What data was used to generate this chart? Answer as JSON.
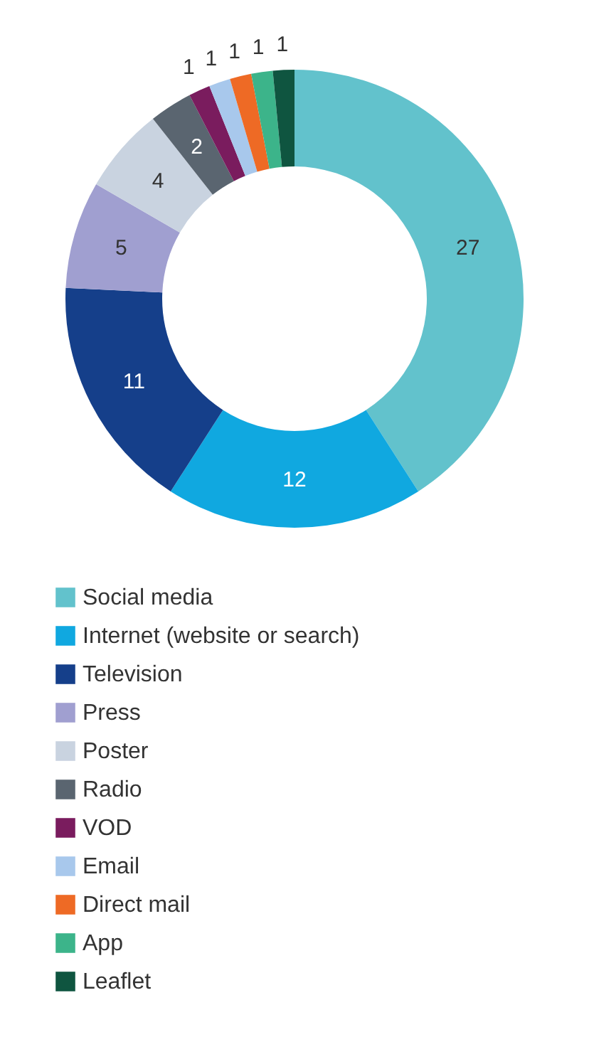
{
  "chart_data": {
    "type": "donut",
    "categories": [
      "Social media",
      "Internet (website or search)",
      "Television",
      "Press",
      "Poster",
      "Radio",
      "VOD",
      "Email",
      "Direct mail",
      "App",
      "Leaflet"
    ],
    "values": [
      27,
      12,
      11,
      5,
      4,
      2,
      1,
      1,
      1,
      1,
      1
    ],
    "colors": [
      "#62c2cc",
      "#10a8e0",
      "#153f8a",
      "#a09fd0",
      "#c9d3e0",
      "#5a6570",
      "#7a1c5e",
      "#a8c8ec",
      "#ee6a25",
      "#3cb48a",
      "#0f5540"
    ],
    "data_labels": true,
    "legend": "bottom"
  }
}
